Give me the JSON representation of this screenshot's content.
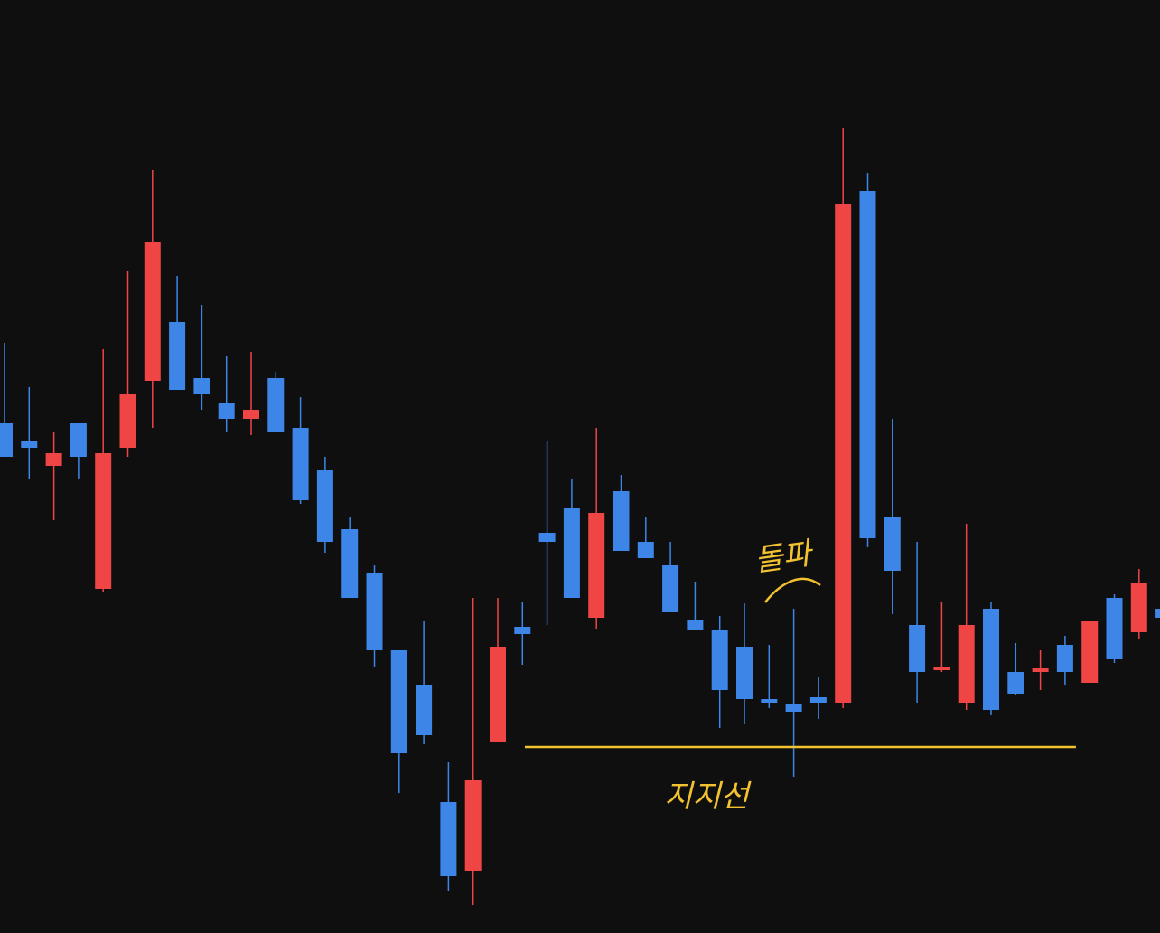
{
  "chart_data": {
    "type": "candlestick",
    "ylim": [
      0,
      1033
    ],
    "up_color": "#f04545",
    "down_color": "#3d86e8",
    "open": [
      565,
      545,
      517,
      565,
      381,
      537,
      611,
      677,
      615,
      587,
      569,
      615,
      559,
      513,
      447,
      399,
      313,
      275,
      145,
      69,
      211,
      339,
      443,
      471,
      349,
      489,
      433,
      407,
      347,
      335,
      317,
      259,
      253,
      261,
      255,
      821,
      461,
      341,
      291,
      255,
      359,
      289,
      289,
      319,
      277,
      371,
      333,
      359
    ],
    "high": [
      653,
      605,
      555,
      565,
      647,
      733,
      845,
      727,
      695,
      639,
      643,
      621,
      593,
      527,
      461,
      407,
      313,
      345,
      189,
      371,
      371,
      367,
      545,
      503,
      559,
      507,
      461,
      433,
      389,
      351,
      365,
      319,
      359,
      283,
      891,
      841,
      569,
      433,
      367,
      453,
      367,
      321,
      313,
      329,
      345,
      375,
      403,
      359
    ],
    "low": [
      527,
      503,
      457,
      503,
      377,
      527,
      559,
      601,
      579,
      555,
      551,
      555,
      475,
      421,
      371,
      295,
      155,
      209,
      47,
      31,
      211,
      297,
      341,
      371,
      337,
      423,
      415,
      355,
      335,
      227,
      231,
      249,
      173,
      237,
      249,
      427,
      353,
      255,
      289,
      247,
      241,
      263,
      269,
      275,
      277,
      299,
      325,
      349
    ],
    "close": [
      527,
      537,
      531,
      527,
      531,
      597,
      765,
      601,
      597,
      569,
      579,
      555,
      479,
      433,
      371,
      313,
      199,
      219,
      63,
      169,
      317,
      331,
      433,
      371,
      465,
      423,
      415,
      355,
      335,
      269,
      259,
      255,
      245,
      255,
      807,
      437,
      401,
      289,
      295,
      341,
      247,
      265,
      293,
      289,
      345,
      303,
      387,
      349
    ],
    "support_line": {
      "value": 206,
      "color": "#f2c230",
      "label": "지지선"
    },
    "annotations": [
      {
        "text": "돌파"
      }
    ]
  }
}
